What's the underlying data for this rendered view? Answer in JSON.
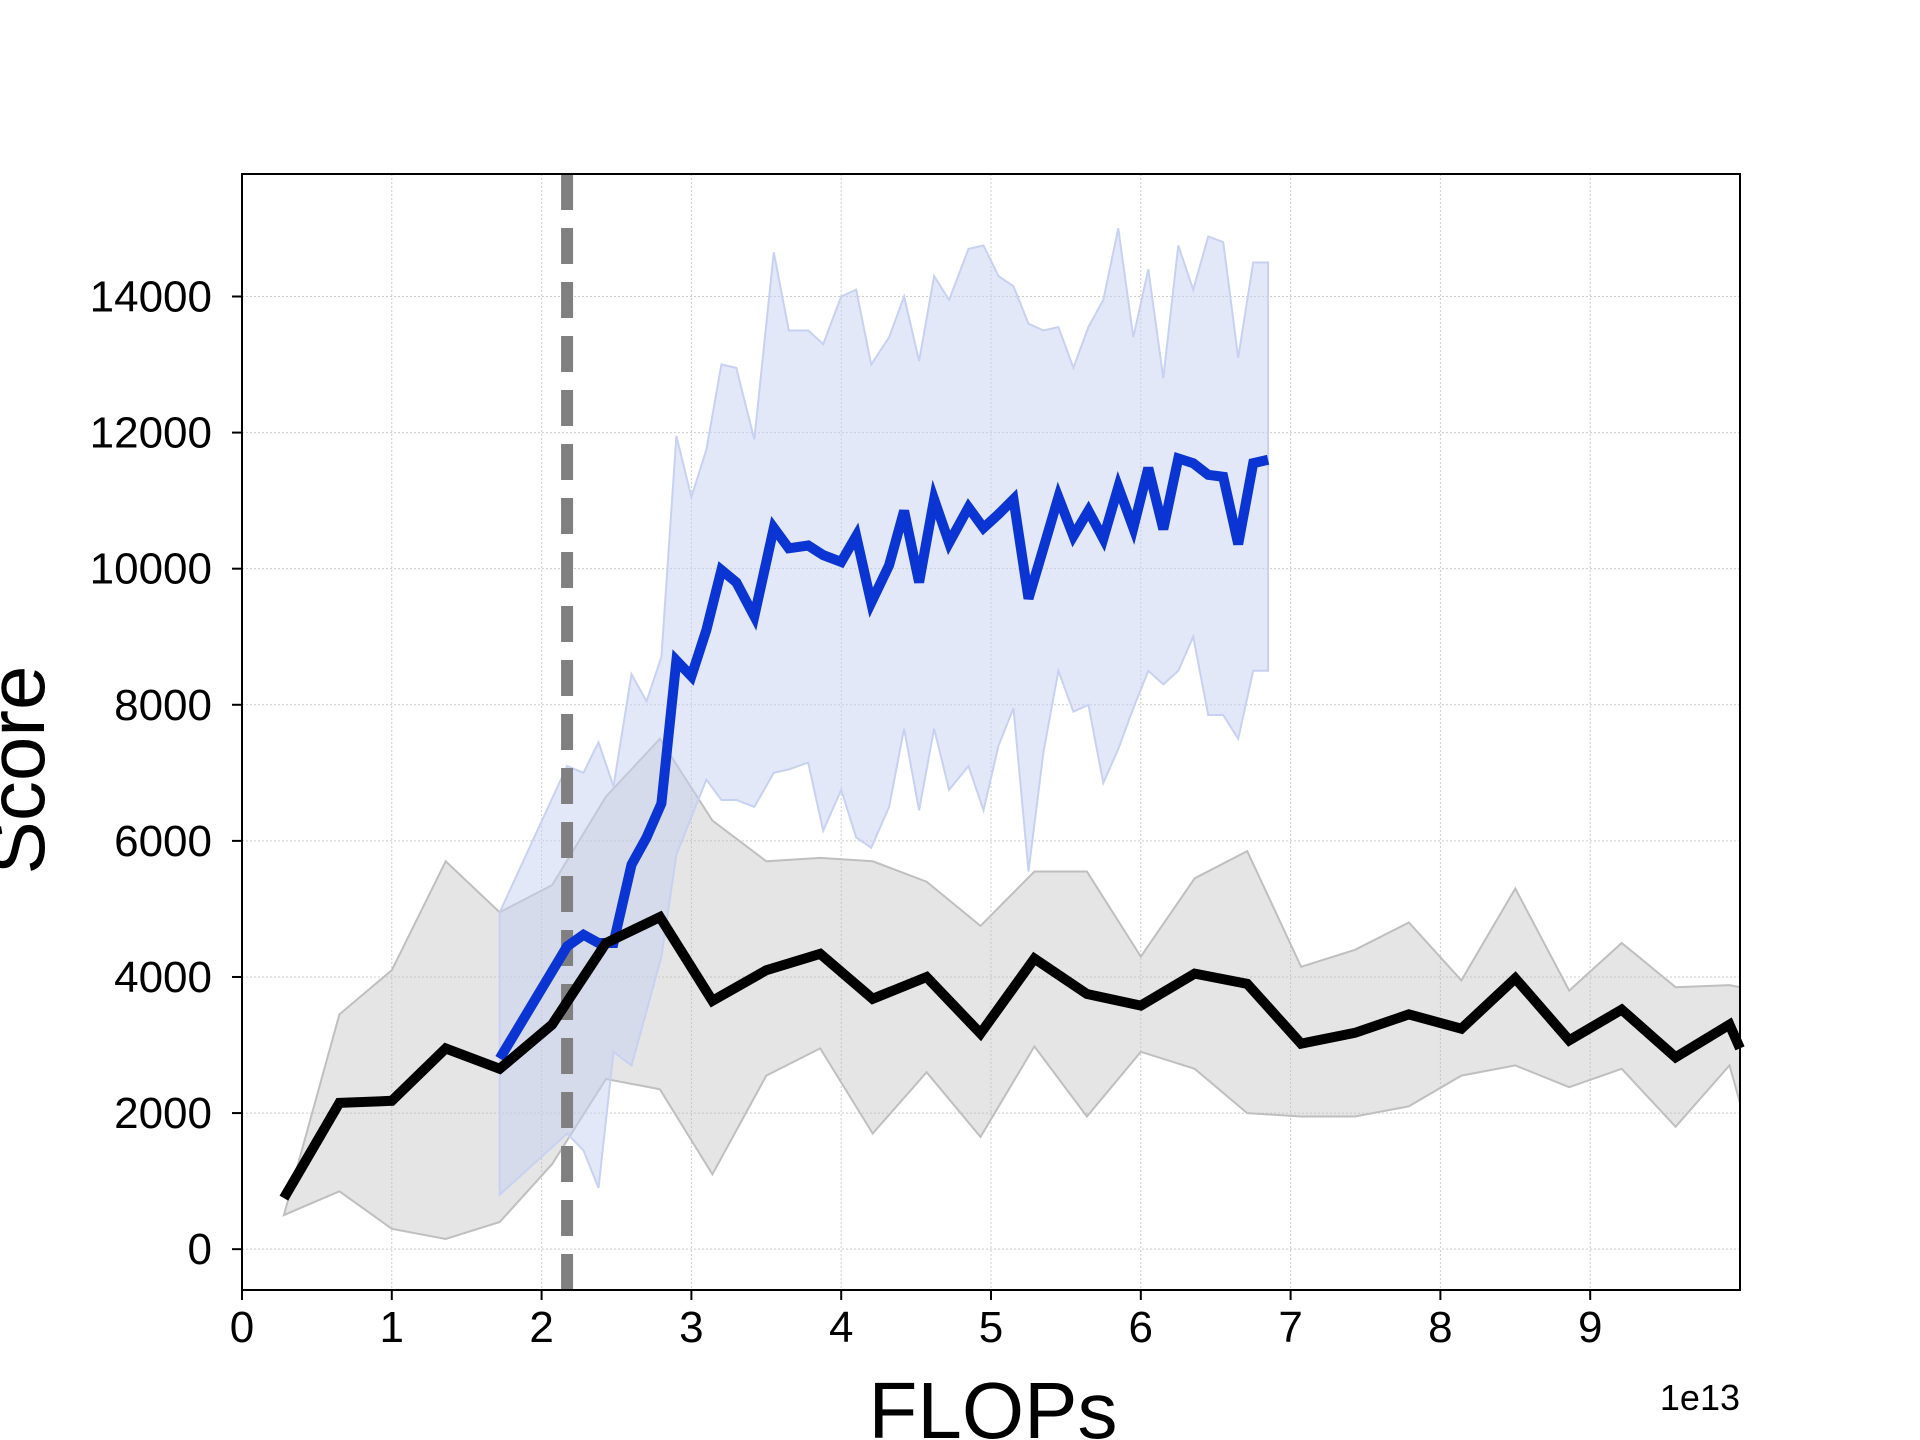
{
  "chart_data": {
    "type": "line",
    "xlabel": "FLOPs",
    "ylabel": "Score",
    "x_offset_label": "1e13",
    "xlim": [
      0,
      10
    ],
    "ylim": [
      -600,
      15800
    ],
    "x_ticks": [
      0,
      1,
      2,
      3,
      4,
      5,
      6,
      7,
      8,
      9
    ],
    "y_ticks": [
      0,
      2000,
      4000,
      6000,
      8000,
      10000,
      12000,
      14000
    ],
    "grid": true,
    "vline": {
      "x": 2.17,
      "color": "#808080",
      "style": "dashed"
    },
    "series": [
      {
        "color": "#0a35d3",
        "band_color": "#c7d1f2",
        "x": [
          1.72,
          2.17,
          2.28,
          2.38,
          2.48,
          2.6,
          2.7,
          2.8,
          2.9,
          3.0,
          3.1,
          3.2,
          3.3,
          3.42,
          3.55,
          3.65,
          3.78,
          3.88,
          4.0,
          4.1,
          4.2,
          4.32,
          4.42,
          4.52,
          4.62,
          4.72,
          4.85,
          4.95,
          5.05,
          5.15,
          5.25,
          5.35,
          5.45,
          5.55,
          5.65,
          5.75,
          5.85,
          5.95,
          6.05,
          6.15,
          6.25,
          6.35,
          6.45,
          6.55,
          6.65,
          6.75,
          6.85
        ],
        "y": [
          2800,
          4450,
          4620,
          4500,
          4500,
          5650,
          6050,
          6550,
          8650,
          8420,
          9100,
          9980,
          9800,
          9300,
          10600,
          10300,
          10340,
          10200,
          10100,
          10480,
          9500,
          10050,
          10850,
          9800,
          11020,
          10380,
          10900,
          10600,
          10800,
          11020,
          9560,
          10300,
          11050,
          10480,
          10850,
          10440,
          11200,
          10600,
          11480,
          10580,
          11620,
          11550,
          11380,
          11350,
          10360,
          11550,
          11600
        ],
        "band_upper": [
          4950,
          7100,
          7000,
          7450,
          6800,
          8450,
          8050,
          8700,
          11950,
          11050,
          11750,
          13000,
          12950,
          11900,
          14650,
          13500,
          13500,
          13300,
          14000,
          14100,
          13000,
          13400,
          14000,
          13050,
          14300,
          13950,
          14700,
          14750,
          14300,
          14150,
          13600,
          13500,
          13550,
          12950,
          13550,
          13950,
          15000,
          13400,
          14400,
          12800,
          14750,
          14100,
          14880,
          14800,
          13100,
          14500,
          14500
        ],
        "band_lower": [
          800,
          1700,
          1450,
          900,
          2900,
          2700,
          3500,
          4300,
          5800,
          6350,
          6900,
          6600,
          6600,
          6500,
          7000,
          7050,
          7150,
          6150,
          6750,
          6050,
          5900,
          6500,
          7650,
          6450,
          7650,
          6750,
          7100,
          6450,
          7400,
          7950,
          5550,
          7300,
          8500,
          7900,
          8000,
          6850,
          7350,
          7950,
          8500,
          8300,
          8500,
          9000,
          7850,
          7850,
          7500,
          8500,
          8500
        ]
      },
      {
        "color": "#000000",
        "band_color": "#bfbfbf",
        "x": [
          0.28,
          0.65,
          1.0,
          1.36,
          1.72,
          2.07,
          2.43,
          2.79,
          3.14,
          3.5,
          3.86,
          4.21,
          4.57,
          4.93,
          5.29,
          5.64,
          6.0,
          6.36,
          6.71,
          7.07,
          7.43,
          7.79,
          8.14,
          8.5,
          8.86,
          9.21,
          9.57,
          9.93,
          10.0
        ],
        "y": [
          750,
          2150,
          2180,
          2950,
          2650,
          3300,
          4500,
          4880,
          3650,
          4100,
          4340,
          3680,
          4000,
          3170,
          4270,
          3750,
          3580,
          4050,
          3900,
          3020,
          3180,
          3450,
          3240,
          3980,
          3070,
          3520,
          2820,
          3300,
          2950
        ],
        "band_upper": [
          500,
          3450,
          4100,
          5700,
          4950,
          5350,
          6650,
          7500,
          6300,
          5700,
          5750,
          5700,
          5400,
          4750,
          5550,
          5550,
          4300,
          5450,
          5850,
          4150,
          4400,
          4800,
          3950,
          5300,
          3800,
          4500,
          3850,
          3880,
          3850
        ],
        "band_lower": [
          500,
          850,
          300,
          150,
          400,
          1250,
          2500,
          2350,
          1100,
          2550,
          2950,
          1700,
          2600,
          1650,
          2980,
          1950,
          2900,
          2650,
          2000,
          1950,
          1950,
          2100,
          2550,
          2700,
          2380,
          2650,
          1800,
          2700,
          2150
        ]
      }
    ]
  }
}
